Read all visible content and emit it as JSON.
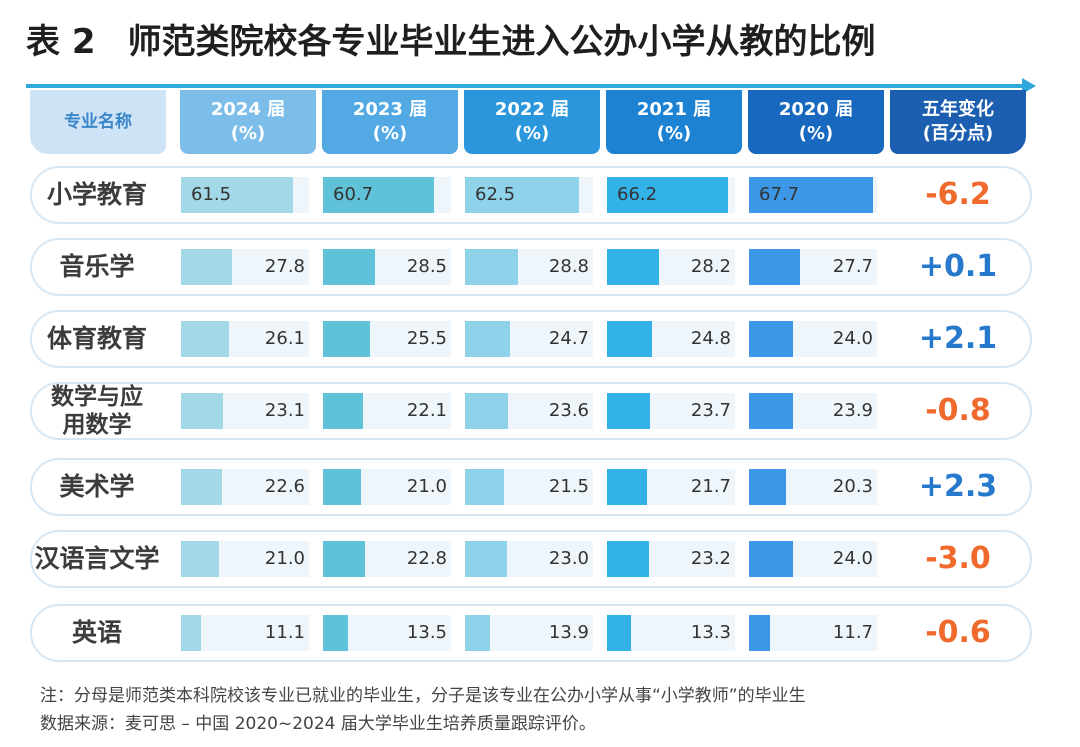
{
  "title": {
    "label": "表 2",
    "text": "师范类院校各专业毕业生进入公办小学从教的比例"
  },
  "header": {
    "major": "专业名称",
    "years": [
      {
        "line1": "2024 届",
        "line2": "(%)"
      },
      {
        "line1": "2023 届",
        "line2": "(%)"
      },
      {
        "line1": "2022 届",
        "line2": "(%)"
      },
      {
        "line1": "2021 届",
        "line2": "(%)"
      },
      {
        "line1": "2020 届",
        "line2": "(%)"
      }
    ],
    "change": {
      "line1": "五年变化",
      "line2": "(百分点)"
    }
  },
  "colors": {
    "header": [
      "#cfe3f6",
      "#7cbde9",
      "#52a9e3",
      "#2c96dc",
      "#1e82d3",
      "#1768be",
      "#1c5fb0"
    ],
    "bars": [
      "#a3d8e6",
      "#5fc2d9",
      "#8ed3ea",
      "#33b2e8",
      "#3c97e6"
    ],
    "negative": "#ef6a2c",
    "positive": "#2679cc"
  },
  "chart_data": {
    "type": "table",
    "title": "师范类院校各专业毕业生进入公办小学从教的比例",
    "columns": [
      "2024 届",
      "2023 届",
      "2022 届",
      "2021 届",
      "2020 届"
    ],
    "unit": "%",
    "rows": [
      {
        "major": "小学教育",
        "values": [
          "61.5",
          "60.7",
          "62.5",
          "66.2",
          "67.7"
        ],
        "change": "-6.2"
      },
      {
        "major": "音乐学",
        "values": [
          "27.8",
          "28.5",
          "28.8",
          "28.2",
          "27.7"
        ],
        "change": "+0.1"
      },
      {
        "major": "体育教育",
        "values": [
          "26.1",
          "25.5",
          "24.7",
          "24.8",
          "24.0"
        ],
        "change": "+2.1"
      },
      {
        "major": "数学与应用数学",
        "values": [
          "23.1",
          "22.1",
          "23.6",
          "23.7",
          "23.9"
        ],
        "change": "-0.8"
      },
      {
        "major": "美术学",
        "values": [
          "22.6",
          "21.0",
          "21.5",
          "21.7",
          "20.3"
        ],
        "change": "+2.3"
      },
      {
        "major": "汉语言文学",
        "values": [
          "21.0",
          "22.8",
          "23.0",
          "23.2",
          "24.0"
        ],
        "change": "-3.0"
      },
      {
        "major": "英语",
        "values": [
          "11.1",
          "13.5",
          "13.9",
          "13.3",
          "11.7"
        ],
        "change": "-0.6"
      }
    ]
  },
  "notes": {
    "note": "注：分母是师范类本科院校该专业已就业的毕业生，分子是该专业在公办小学从事“小学教师”的毕业生",
    "source": "数据来源：麦可思 – 中国 2020~2024 届大学毕业生培养质量跟踪评价。"
  }
}
